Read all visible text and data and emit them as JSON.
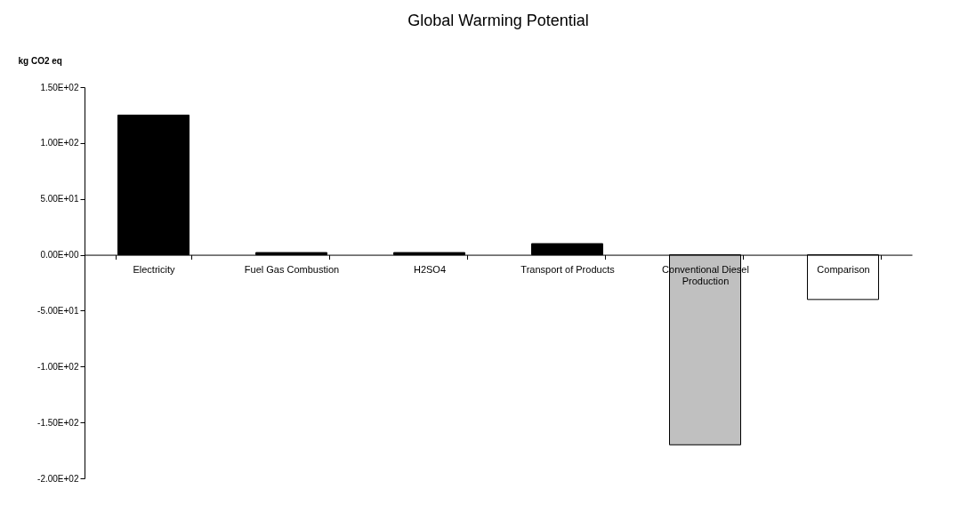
{
  "chart_data": {
    "type": "bar",
    "title": "Global Warming Potential",
    "ylabel": "kg CO2 eq",
    "categories": [
      "Electricity",
      "Fuel Gas Combustion",
      "H2SO4",
      "Transport of Products",
      "Conventional Diesel Production",
      "Comparison"
    ],
    "values": [
      125,
      2,
      2,
      10,
      -170,
      -40
    ],
    "colors": [
      "#000000",
      "#000000",
      "#000000",
      "#000000",
      "#c0c0c0",
      "#ffffff"
    ],
    "ylim": [
      -200,
      150
    ],
    "yticks": [
      {
        "value": -200,
        "label": "-2.00E+02"
      },
      {
        "value": -150,
        "label": "-1.50E+02"
      },
      {
        "value": -100,
        "label": "-1.00E+02"
      },
      {
        "value": -50,
        "label": "-5.00E+01"
      },
      {
        "value": 0,
        "label": "0.00E+00"
      },
      {
        "value": 50,
        "label": "5.00E+01"
      },
      {
        "value": 100,
        "label": "1.00E+02"
      },
      {
        "value": 150,
        "label": "1.50E+02"
      }
    ],
    "grid": false
  }
}
